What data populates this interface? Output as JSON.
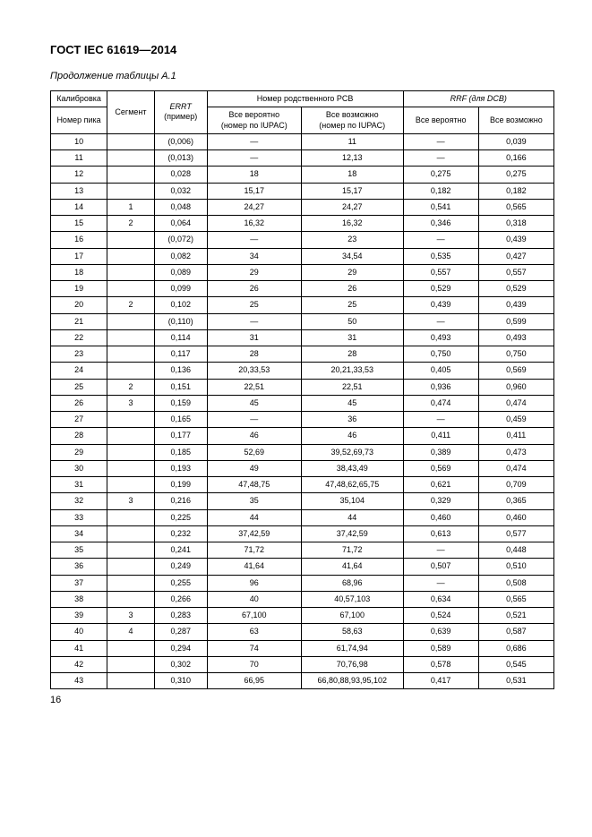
{
  "doc_title": "ГОСТ IEC 61619—2014",
  "caption": "Продолжение таблицы А.1",
  "page_number": "16",
  "head": {
    "h_kalib": "Калибровка",
    "h_segment": "Сегмент",
    "h_errt": "ERRT",
    "h_errt_sub": "(пример)",
    "h_pcb": "Номер родственного PCB",
    "h_rrf": "RRF (для DCB)",
    "h_nomer": "Номер пика",
    "h_prob": "Все вероятно",
    "h_prob_sub": "(номер по IUPAC)",
    "h_poss": "Все возможно",
    "h_poss_sub": "(номер по IUPAC)",
    "h_prob2": "Все вероятно",
    "h_poss2": "Все возможно"
  },
  "rows": [
    {
      "n": "10",
      "seg": "",
      "errt": "(0,006)",
      "p": "—",
      "q": "11",
      "r": "—",
      "s": "0,039"
    },
    {
      "n": "11",
      "seg": "",
      "errt": "(0,013)",
      "p": "—",
      "q": "12,13",
      "r": "—",
      "s": "0,166"
    },
    {
      "n": "12",
      "seg": "",
      "errt": "0,028",
      "p": "18",
      "q": "18",
      "r": "0,275",
      "s": "0,275"
    },
    {
      "n": "13",
      "seg": "",
      "errt": "0,032",
      "p": "15,17",
      "q": "15,17",
      "r": "0,182",
      "s": "0,182"
    },
    {
      "n": "14",
      "seg": "1",
      "errt": "0,048",
      "p": "24,27",
      "q": "24,27",
      "r": "0,541",
      "s": "0,565"
    },
    {
      "n": "15",
      "seg": "2",
      "errt": "0,064",
      "p": "16,32",
      "q": "16,32",
      "r": "0,346",
      "s": "0,318"
    },
    {
      "n": "16",
      "seg": "",
      "errt": "(0,072)",
      "p": "—",
      "q": "23",
      "r": "—",
      "s": "0,439"
    },
    {
      "n": "17",
      "seg": "",
      "errt": "0,082",
      "p": "34",
      "q": "34,54",
      "r": "0,535",
      "s": "0,427"
    },
    {
      "n": "18",
      "seg": "",
      "errt": "0,089",
      "p": "29",
      "q": "29",
      "r": "0,557",
      "s": "0,557"
    },
    {
      "n": "19",
      "seg": "",
      "errt": "0,099",
      "p": "26",
      "q": "26",
      "r": "0,529",
      "s": "0,529"
    },
    {
      "n": "20",
      "seg": "2",
      "errt": "0,102",
      "p": "25",
      "q": "25",
      "r": "0,439",
      "s": "0,439"
    },
    {
      "n": "21",
      "seg": "",
      "errt": "(0,110)",
      "p": "—",
      "q": "50",
      "r": "—",
      "s": "0,599"
    },
    {
      "n": "22",
      "seg": "",
      "errt": "0,114",
      "p": "31",
      "q": "31",
      "r": "0,493",
      "s": "0,493"
    },
    {
      "n": "23",
      "seg": "",
      "errt": "0,117",
      "p": "28",
      "q": "28",
      "r": "0,750",
      "s": "0,750"
    },
    {
      "n": "24",
      "seg": "",
      "errt": "0,136",
      "p": "20,33,53",
      "q": "20,21,33,53",
      "r": "0,405",
      "s": "0,569"
    },
    {
      "n": "25",
      "seg": "2",
      "errt": "0,151",
      "p": "22,51",
      "q": "22,51",
      "r": "0,936",
      "s": "0,960"
    },
    {
      "n": "26",
      "seg": "3",
      "errt": "0,159",
      "p": "45",
      "q": "45",
      "r": "0,474",
      "s": "0,474"
    },
    {
      "n": "27",
      "seg": "",
      "errt": "0,165",
      "p": "—",
      "q": "36",
      "r": "—",
      "s": "0,459"
    },
    {
      "n": "28",
      "seg": "",
      "errt": "0,177",
      "p": "46",
      "q": "46",
      "r": "0,411",
      "s": "0,411"
    },
    {
      "n": "29",
      "seg": "",
      "errt": "0,185",
      "p": "52,69",
      "q": "39,52,69,73",
      "r": "0,389",
      "s": "0,473"
    },
    {
      "n": "30",
      "seg": "",
      "errt": "0,193",
      "p": "49",
      "q": "38,43,49",
      "r": "0,569",
      "s": "0,474"
    },
    {
      "n": "31",
      "seg": "",
      "errt": "0,199",
      "p": "47,48,75",
      "q": "47,48,62,65,75",
      "r": "0,621",
      "s": "0,709"
    },
    {
      "n": "32",
      "seg": "3",
      "errt": "0,216",
      "p": "35",
      "q": "35,104",
      "r": "0,329",
      "s": "0,365"
    },
    {
      "n": "33",
      "seg": "",
      "errt": "0,225",
      "p": "44",
      "q": "44",
      "r": "0,460",
      "s": "0,460"
    },
    {
      "n": "34",
      "seg": "",
      "errt": "0,232",
      "p": "37,42,59",
      "q": "37,42,59",
      "r": "0,613",
      "s": "0,577"
    },
    {
      "n": "35",
      "seg": "",
      "errt": "0,241",
      "p": "71,72",
      "q": "71,72",
      "r": "—",
      "s": "0,448"
    },
    {
      "n": "36",
      "seg": "",
      "errt": "0,249",
      "p": "41,64",
      "q": "41,64",
      "r": "0,507",
      "s": "0,510"
    },
    {
      "n": "37",
      "seg": "",
      "errt": "0,255",
      "p": "96",
      "q": "68,96",
      "r": "—",
      "s": "0,508"
    },
    {
      "n": "38",
      "seg": "",
      "errt": "0,266",
      "p": "40",
      "q": "40,57,103",
      "r": "0,634",
      "s": "0,565"
    },
    {
      "n": "39",
      "seg": "3",
      "errt": "0,283",
      "p": "67,100",
      "q": "67,100",
      "r": "0,524",
      "s": "0,521"
    },
    {
      "n": "40",
      "seg": "4",
      "errt": "0,287",
      "p": "63",
      "q": "58,63",
      "r": "0,639",
      "s": "0,587"
    },
    {
      "n": "41",
      "seg": "",
      "errt": "0,294",
      "p": "74",
      "q": "61,74,94",
      "r": "0,589",
      "s": "0,686"
    },
    {
      "n": "42",
      "seg": "",
      "errt": "0,302",
      "p": "70",
      "q": "70,76,98",
      "r": "0,578",
      "s": "0,545"
    },
    {
      "n": "43",
      "seg": "",
      "errt": "0,310",
      "p": "66,95",
      "q": "66,80,88,93,95,102",
      "r": "0,417",
      "s": "0,531"
    }
  ]
}
